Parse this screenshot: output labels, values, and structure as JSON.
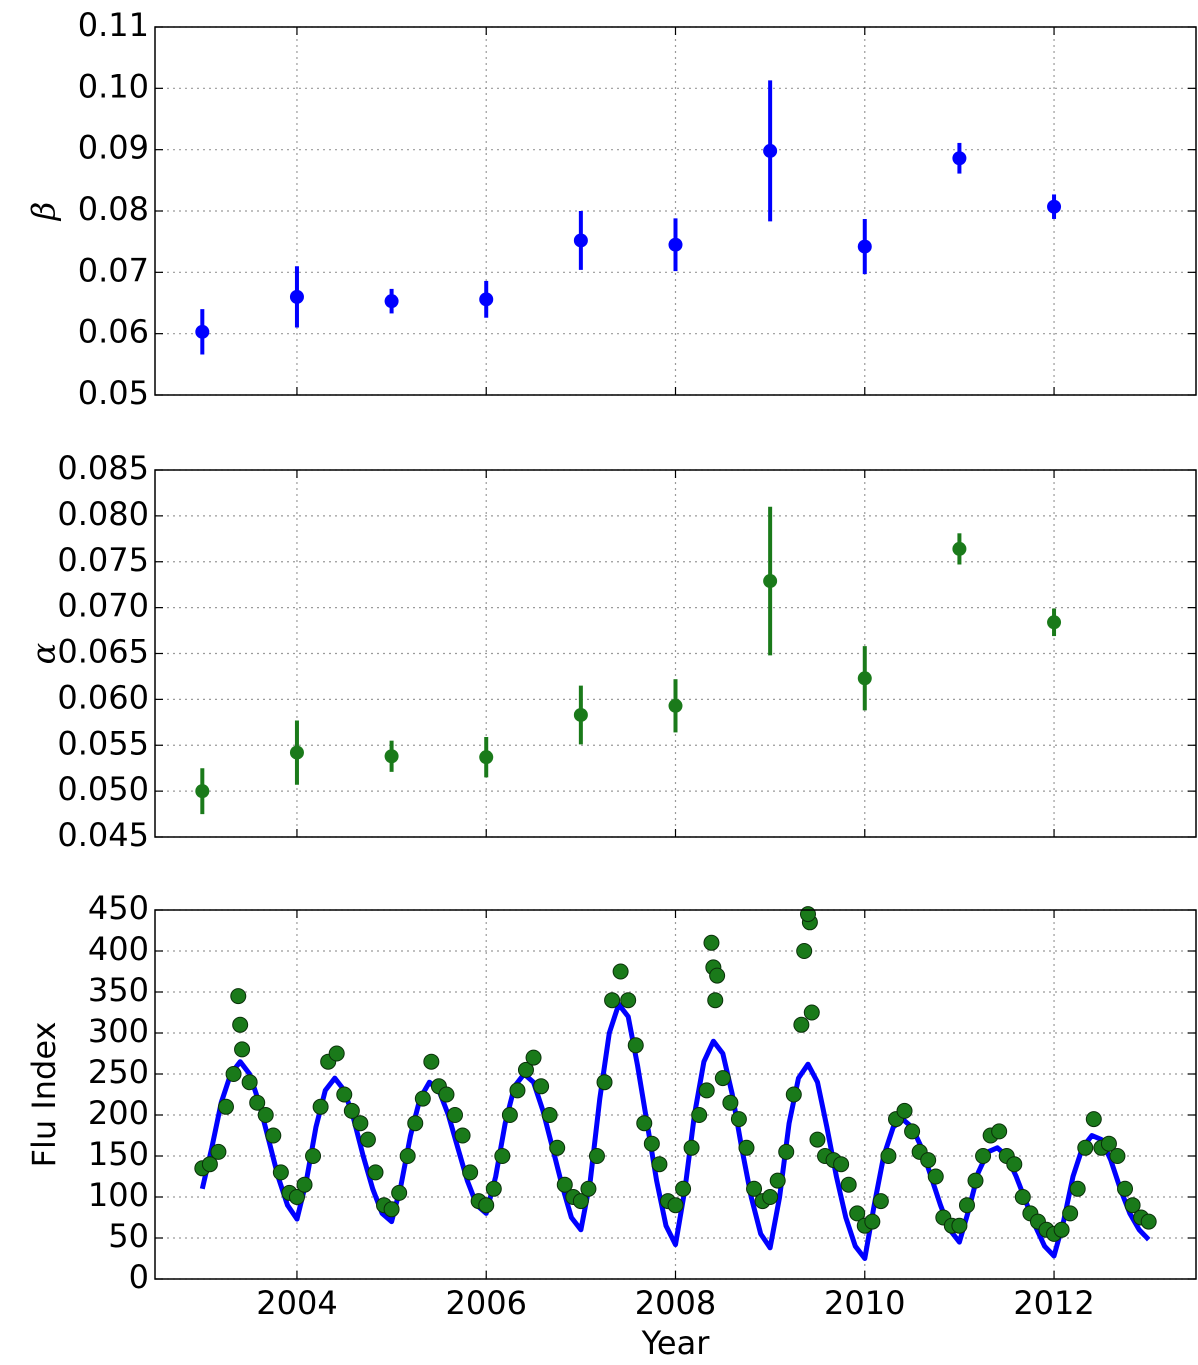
{
  "chart_data": [
    {
      "type": "errorbar",
      "ylabel": "β",
      "color": "#0000ff",
      "x": [
        2003,
        2004,
        2005,
        2006,
        2007,
        2008,
        2009,
        2010,
        2011,
        2012
      ],
      "values": [
        0.0603,
        0.066,
        0.0653,
        0.0656,
        0.0752,
        0.0745,
        0.0898,
        0.0742,
        0.0886,
        0.0807
      ],
      "errors": [
        0.0037,
        0.005,
        0.002,
        0.003,
        0.0048,
        0.0043,
        0.0115,
        0.0045,
        0.0025,
        0.002
      ],
      "xlim": [
        2002.5,
        2013.5
      ],
      "xticks": [
        2004,
        2006,
        2008,
        2010,
        2012
      ],
      "ylim": [
        0.05,
        0.11
      ],
      "yticks": [
        0.05,
        0.06,
        0.07,
        0.08,
        0.09,
        {
          "value": 0.1,
          "label": "0.10"
        },
        0.11
      ],
      "grid": true
    },
    {
      "type": "errorbar",
      "ylabel": "α",
      "color": "#1a7a1a",
      "x": [
        2003,
        2004,
        2005,
        2006,
        2007,
        2008,
        2009,
        2010,
        2011,
        2012
      ],
      "values": [
        0.05,
        0.0542,
        0.0538,
        0.0537,
        0.0583,
        0.0593,
        0.0729,
        0.0623,
        0.0764,
        0.0684
      ],
      "errors": [
        0.0025,
        0.0035,
        0.0017,
        0.0022,
        0.0032,
        0.0029,
        0.0081,
        0.0035,
        0.0017,
        0.0015
      ],
      "xlim": [
        2002.5,
        2013.5
      ],
      "xticks": [
        2004,
        2006,
        2008,
        2010,
        2012
      ],
      "ylim": [
        0.045,
        0.085
      ],
      "yticks": [
        0.045,
        {
          "value": 0.05,
          "label": "0.050"
        },
        0.055,
        {
          "value": 0.06,
          "label": "0.060"
        },
        0.065,
        {
          "value": 0.07,
          "label": "0.070"
        },
        0.075,
        {
          "value": 0.08,
          "label": "0.080"
        },
        0.085
      ],
      "grid": true
    },
    {
      "type": "scatter",
      "xlabel": "Year",
      "ylabel": "Flu Index",
      "xlim": [
        2002.5,
        2013.5
      ],
      "xticks": [
        2004,
        2006,
        2008,
        2010,
        2012
      ],
      "ylim": [
        0,
        450
      ],
      "yticks": [
        0,
        50,
        100,
        150,
        200,
        250,
        300,
        350,
        400,
        450
      ],
      "grid": true,
      "series": [
        {
          "type": "line",
          "color": "#0000ff",
          "x": [
            2003.0,
            2003.1,
            2003.2,
            2003.3,
            2003.4,
            2003.5,
            2003.6,
            2003.7,
            2003.8,
            2003.9,
            2004.0,
            2004.1,
            2004.2,
            2004.3,
            2004.4,
            2004.5,
            2004.6,
            2004.7,
            2004.8,
            2004.9,
            2005.0,
            2005.1,
            2005.2,
            2005.3,
            2005.4,
            2005.5,
            2005.6,
            2005.7,
            2005.8,
            2005.9,
            2006.0,
            2006.1,
            2006.2,
            2006.3,
            2006.4,
            2006.5,
            2006.6,
            2006.7,
            2006.8,
            2006.9,
            2007.0,
            2007.1,
            2007.2,
            2007.3,
            2007.4,
            2007.5,
            2007.6,
            2007.7,
            2007.8,
            2007.9,
            2008.0,
            2008.1,
            2008.2,
            2008.3,
            2008.4,
            2008.5,
            2008.6,
            2008.7,
            2008.8,
            2008.9,
            2009.0,
            2009.1,
            2009.2,
            2009.3,
            2009.4,
            2009.5,
            2009.6,
            2009.7,
            2009.8,
            2009.9,
            2010.0,
            2010.1,
            2010.2,
            2010.3,
            2010.4,
            2010.5,
            2010.6,
            2010.7,
            2010.8,
            2010.9,
            2011.0,
            2011.1,
            2011.2,
            2011.3,
            2011.4,
            2011.5,
            2011.6,
            2011.7,
            2011.8,
            2011.9,
            2012.0,
            2012.1,
            2012.2,
            2012.3,
            2012.4,
            2012.5,
            2012.6,
            2012.7,
            2012.8,
            2012.9,
            2013.0
          ],
          "values": [
            110,
            160,
            215,
            250,
            265,
            250,
            215,
            170,
            125,
            90,
            73,
            120,
            185,
            230,
            245,
            230,
            195,
            150,
            110,
            80,
            70,
            115,
            175,
            220,
            240,
            230,
            200,
            160,
            120,
            90,
            80,
            125,
            190,
            235,
            250,
            240,
            205,
            160,
            115,
            75,
            60,
            120,
            220,
            300,
            335,
            320,
            260,
            190,
            120,
            65,
            42,
            110,
            200,
            265,
            290,
            275,
            225,
            160,
            100,
            55,
            38,
            100,
            190,
            245,
            262,
            240,
            185,
            125,
            75,
            40,
            25,
            90,
            150,
            185,
            195,
            185,
            160,
            125,
            90,
            60,
            45,
            85,
            130,
            155,
            160,
            150,
            125,
            95,
            65,
            40,
            28,
            70,
            125,
            160,
            175,
            170,
            145,
            110,
            80,
            60,
            48
          ]
        },
        {
          "type": "scatter",
          "color": "#1a7a1a",
          "x": [
            2003.0,
            2003.08,
            2003.17,
            2003.25,
            2003.33,
            2003.42,
            2003.5,
            2003.58,
            2003.67,
            2003.75,
            2003.83,
            2003.92,
            2003.38,
            2003.4,
            2004.0,
            2004.08,
            2004.17,
            2004.25,
            2004.33,
            2004.42,
            2004.5,
            2004.58,
            2004.67,
            2004.75,
            2004.83,
            2004.92,
            2005.0,
            2005.08,
            2005.17,
            2005.25,
            2005.33,
            2005.42,
            2005.5,
            2005.58,
            2005.67,
            2005.75,
            2005.83,
            2005.92,
            2006.0,
            2006.08,
            2006.17,
            2006.25,
            2006.33,
            2006.42,
            2006.5,
            2006.58,
            2006.67,
            2006.75,
            2006.83,
            2006.92,
            2007.0,
            2007.08,
            2007.17,
            2007.25,
            2007.33,
            2007.42,
            2007.5,
            2007.58,
            2007.67,
            2007.75,
            2007.83,
            2007.92,
            2008.0,
            2008.08,
            2008.17,
            2008.25,
            2008.33,
            2008.42,
            2008.5,
            2008.58,
            2008.67,
            2008.75,
            2008.83,
            2008.92,
            2008.38,
            2008.4,
            2008.44,
            2009.0,
            2009.08,
            2009.17,
            2009.25,
            2009.33,
            2009.42,
            2009.5,
            2009.58,
            2009.67,
            2009.75,
            2009.83,
            2009.92,
            2009.36,
            2009.4,
            2009.44,
            2010.0,
            2010.08,
            2010.17,
            2010.25,
            2010.33,
            2010.42,
            2010.5,
            2010.58,
            2010.67,
            2010.75,
            2010.83,
            2010.92,
            2011.0,
            2011.08,
            2011.17,
            2011.25,
            2011.33,
            2011.42,
            2011.5,
            2011.58,
            2011.67,
            2011.75,
            2011.83,
            2011.92,
            2012.0,
            2012.08,
            2012.17,
            2012.25,
            2012.33,
            2012.42,
            2012.5,
            2012.58,
            2012.67,
            2012.75,
            2012.83,
            2012.92,
            2013.0
          ],
          "values": [
            135,
            140,
            155,
            210,
            250,
            280,
            240,
            215,
            200,
            175,
            130,
            105,
            345,
            310,
            100,
            115,
            150,
            210,
            265,
            275,
            225,
            205,
            190,
            170,
            130,
            90,
            85,
            105,
            150,
            190,
            220,
            265,
            235,
            225,
            200,
            175,
            130,
            95,
            90,
            110,
            150,
            200,
            230,
            255,
            270,
            235,
            200,
            160,
            115,
            100,
            95,
            110,
            150,
            240,
            340,
            375,
            340,
            285,
            190,
            165,
            140,
            95,
            90,
            110,
            160,
            200,
            230,
            340,
            245,
            215,
            195,
            160,
            110,
            95,
            410,
            380,
            370,
            100,
            120,
            155,
            225,
            310,
            435,
            170,
            150,
            145,
            140,
            115,
            80,
            400,
            445,
            325,
            65,
            70,
            95,
            150,
            195,
            205,
            180,
            155,
            145,
            125,
            75,
            65,
            65,
            90,
            120,
            150,
            175,
            180,
            150,
            140,
            100,
            80,
            70,
            60,
            55,
            60,
            80,
            110,
            160,
            195,
            160,
            165,
            150,
            110,
            90,
            75,
            70
          ]
        }
      ]
    }
  ]
}
